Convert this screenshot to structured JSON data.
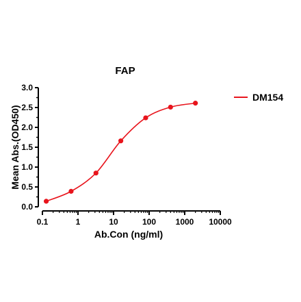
{
  "chart_data": {
    "type": "scatter",
    "title": "FAP",
    "xlabel": "Ab.Con (ng/ml)",
    "ylabel": "Mean Abs.(OD450)",
    "xscale": "log",
    "xlim": [
      0.1,
      10000
    ],
    "ylim": [
      0,
      3.0
    ],
    "x_ticks": [
      0.1,
      1,
      10,
      100,
      1000,
      10000
    ],
    "x_tick_labels": [
      "0.1",
      "1",
      "10",
      "100",
      "1000",
      "10000"
    ],
    "y_ticks": [
      0,
      0.5,
      1.0,
      1.5,
      2.0,
      2.5,
      3.0
    ],
    "y_tick_labels": [
      "0.0",
      "0.5",
      "1.0",
      "1.5",
      "2.0",
      "2.5",
      "3.0"
    ],
    "grid": false,
    "legend_position": "top-right",
    "series": [
      {
        "name": "DM154",
        "color": "#e8141c",
        "fit": "sigmoidal",
        "x": [
          0.128,
          0.64,
          3.2,
          16,
          80,
          400,
          2000
        ],
        "y": [
          0.14,
          0.39,
          0.85,
          1.66,
          2.24,
          2.51,
          2.61
        ]
      }
    ]
  }
}
